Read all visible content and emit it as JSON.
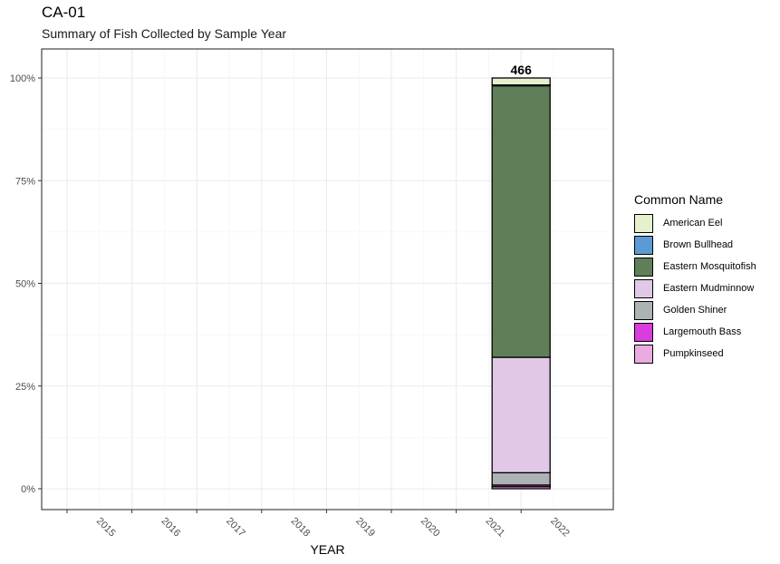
{
  "header": {
    "title": "CA-01",
    "subtitle": "Summary of Fish Collected by Sample Year"
  },
  "chart_data": {
    "type": "bar",
    "stacked": true,
    "normalized": true,
    "title": "CA-01",
    "subtitle": "Summary of Fish Collected by Sample Year",
    "xlabel": "YEAR",
    "ylabel": "",
    "categories": [
      "2015",
      "2016",
      "2017",
      "2018",
      "2019",
      "2020",
      "2021",
      "2022"
    ],
    "y_ticks": [
      "0%",
      "25%",
      "50%",
      "75%",
      "100%"
    ],
    "ylim": [
      0,
      1
    ],
    "grid": true,
    "legend": {
      "title": "Common Name",
      "position": "right"
    },
    "bar_labels": [
      {
        "category": "2022",
        "text": "466"
      }
    ],
    "series": [
      {
        "name": "American Eel",
        "color": "#e5f0cc",
        "values": [
          0,
          0,
          0,
          0,
          0,
          0,
          0,
          0.017
        ]
      },
      {
        "name": "Brown Bullhead",
        "color": "#5b9bd5",
        "values": [
          0,
          0,
          0,
          0,
          0,
          0,
          0,
          0.002
        ]
      },
      {
        "name": "Eastern Mosquitofish",
        "color": "#5e7f58",
        "values": [
          0,
          0,
          0,
          0,
          0,
          0,
          0,
          0.661
        ]
      },
      {
        "name": "Eastern Mudminnow",
        "color": "#e1c8e6",
        "values": [
          0,
          0,
          0,
          0,
          0,
          0,
          0,
          0.281
        ]
      },
      {
        "name": "Golden Shiner",
        "color": "#adb3b4",
        "values": [
          0,
          0,
          0,
          0,
          0,
          0,
          0,
          0.03
        ]
      },
      {
        "name": "Largemouth Bass",
        "color": "#d93ddd",
        "values": [
          0,
          0,
          0,
          0,
          0,
          0,
          0,
          0.004
        ]
      },
      {
        "name": "Pumpkinseed",
        "color": "#e8acdf",
        "values": [
          0,
          0,
          0,
          0,
          0,
          0,
          0,
          0.005
        ]
      }
    ]
  }
}
